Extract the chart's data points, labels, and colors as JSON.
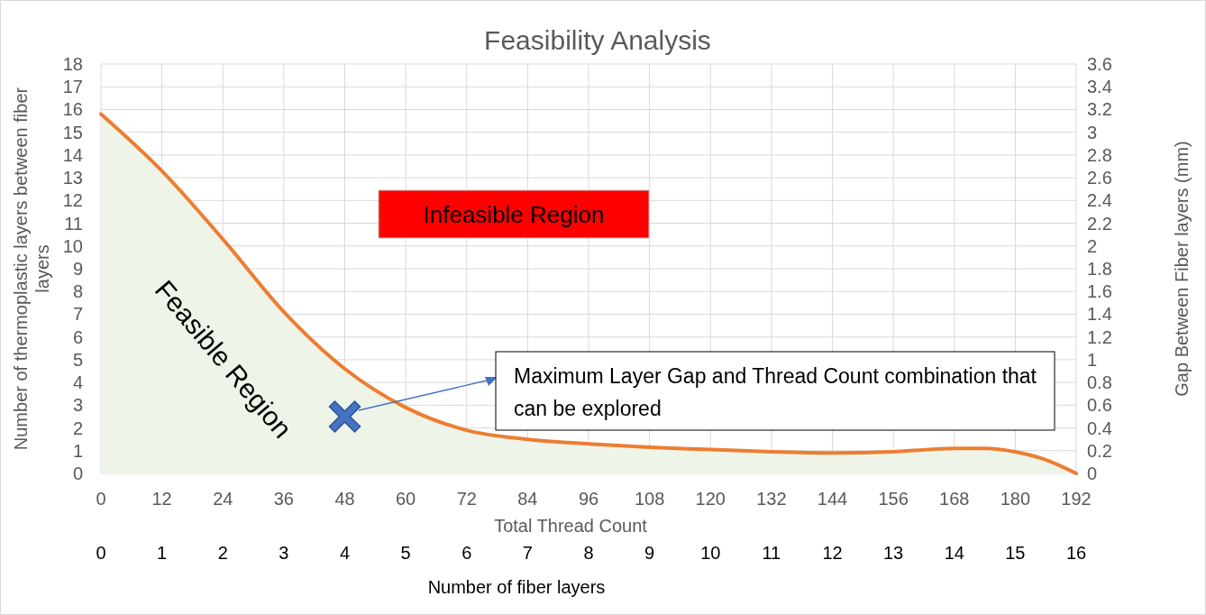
{
  "chart_data": {
    "type": "area",
    "title": "Feasibility Analysis",
    "xlabel": "Total Thread Count",
    "ylabel": "Number of thermoplastic layers between fiber layers",
    "y2label": "Gap Between Fiber layers (mm)",
    "x2label": "Number of fiber layers",
    "x": [
      0,
      12,
      24,
      36,
      48,
      60,
      72,
      84,
      96,
      108,
      120,
      132,
      144,
      156,
      168,
      174,
      180,
      186,
      192
    ],
    "series": [
      {
        "color": "#ed7d31",
        "values": [
          15.8,
          13.3,
          10.3,
          7.1,
          4.6,
          2.9,
          1.9,
          1.5,
          1.3,
          1.15,
          1.05,
          0.95,
          0.9,
          0.95,
          1.1,
          1.1,
          0.95,
          0.6,
          0
        ]
      },
      {
        "type": "scatter",
        "color": "#4472c4",
        "marker": "cross",
        "x": [
          48
        ],
        "values": [
          2.5
        ]
      }
    ],
    "xlim": [
      0,
      192
    ],
    "xticks": [
      0,
      12,
      24,
      36,
      48,
      60,
      72,
      84,
      96,
      108,
      120,
      132,
      144,
      156,
      168,
      180,
      192
    ],
    "x2lim": [
      0,
      16
    ],
    "x2ticks": [
      0,
      1,
      2,
      3,
      4,
      5,
      6,
      7,
      8,
      9,
      10,
      11,
      12,
      13,
      14,
      15,
      16
    ],
    "ylim": [
      0,
      18
    ],
    "yticks": [
      0,
      1,
      2,
      3,
      4,
      5,
      6,
      7,
      8,
      9,
      10,
      11,
      12,
      13,
      14,
      15,
      16,
      17,
      18
    ],
    "y2lim": [
      0,
      3.6
    ],
    "y2ticks": [
      0,
      0.2,
      0.4,
      0.6,
      0.8,
      1,
      1.2,
      1.4,
      1.6,
      1.8,
      2,
      2.2,
      2.4,
      2.6,
      2.8,
      3,
      3.2,
      3.4,
      3.6
    ],
    "grid": true,
    "annotations": [
      "Feasible Region",
      "Infeasible Region",
      "Maximum Layer Gap and Thread Count combination that can be explored"
    ]
  }
}
